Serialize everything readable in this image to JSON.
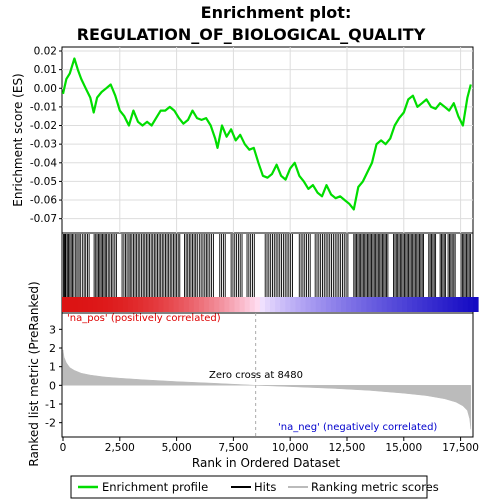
{
  "title_line1": "Enrichment plot:",
  "title_line2": "REGULATION_OF_BIOLOGICAL_QUALITY",
  "colors": {
    "enrichment_line": "#00dd00",
    "hits": "#000000",
    "positive": "#dd0000",
    "negative": "#0000cc",
    "metric_fill": "#bbbbbb",
    "zero_line": "#aaaaaa"
  },
  "chart_data": [
    {
      "type": "line",
      "panel": "enrichment",
      "ylabel": "Enrichment score (ES)",
      "xlim": [
        0,
        18000
      ],
      "ylim": [
        -0.075,
        0.02
      ],
      "yticks": [
        0.02,
        0.01,
        0.0,
        -0.01,
        -0.02,
        -0.03,
        -0.04,
        -0.05,
        -0.06,
        -0.07
      ],
      "ytick_labels": [
        "0.02",
        "0.01",
        "0.00",
        "-0.01",
        "-0.02",
        "-0.03",
        "-0.04",
        "-0.05",
        "-0.06",
        "-0.07"
      ],
      "grid": true,
      "series": [
        {
          "x": [
            0,
            150,
            300,
            500,
            650,
            800,
            1000,
            1200,
            1350,
            1500,
            1700,
            1900,
            2100,
            2300,
            2500,
            2700,
            2900,
            3100,
            3300,
            3500,
            3700,
            3900,
            4100,
            4300,
            4500,
            4700,
            4900,
            5100,
            5300,
            5500,
            5700,
            5900,
            6100,
            6300,
            6500,
            6700,
            6800,
            7000,
            7200,
            7400,
            7600,
            7800,
            8000,
            8200,
            8400,
            8600,
            8800,
            9000,
            9200,
            9400,
            9600,
            9800,
            10000,
            10200,
            10400,
            10600,
            10800,
            11000,
            11200,
            11400,
            11600,
            11800,
            12000,
            12200,
            12400,
            12600,
            12800,
            13000,
            13200,
            13400,
            13600,
            13800,
            14000,
            14200,
            14400,
            14600,
            14800,
            15000,
            15200,
            15400,
            15600,
            15800,
            16000,
            16200,
            16400,
            16600,
            16800,
            17000,
            17200,
            17400,
            17600,
            17800,
            17950
          ],
          "y": [
            -0.003,
            0.005,
            0.008,
            0.016,
            0.01,
            0.005,
            0.0,
            -0.005,
            -0.013,
            -0.005,
            -0.002,
            0.0,
            0.002,
            -0.004,
            -0.012,
            -0.015,
            -0.02,
            -0.012,
            -0.018,
            -0.02,
            -0.018,
            -0.02,
            -0.016,
            -0.012,
            -0.012,
            -0.01,
            -0.012,
            -0.016,
            -0.019,
            -0.017,
            -0.012,
            -0.016,
            -0.017,
            -0.016,
            -0.02,
            -0.027,
            -0.032,
            -0.02,
            -0.026,
            -0.022,
            -0.028,
            -0.025,
            -0.03,
            -0.033,
            -0.032,
            -0.04,
            -0.047,
            -0.048,
            -0.046,
            -0.041,
            -0.047,
            -0.049,
            -0.043,
            -0.04,
            -0.047,
            -0.05,
            -0.054,
            -0.052,
            -0.056,
            -0.058,
            -0.052,
            -0.057,
            -0.059,
            -0.058,
            -0.06,
            -0.062,
            -0.065,
            -0.053,
            -0.05,
            -0.045,
            -0.04,
            -0.03,
            -0.028,
            -0.03,
            -0.027,
            -0.02,
            -0.016,
            -0.013,
            -0.006,
            -0.004,
            -0.01,
            -0.008,
            -0.006,
            -0.01,
            -0.011,
            -0.008,
            -0.01,
            -0.012,
            -0.008,
            -0.015,
            -0.02,
            -0.005,
            0.002
          ]
        }
      ]
    },
    {
      "type": "heatmap",
      "panel": "hits",
      "hit_ranks": [
        25,
        60,
        95,
        130,
        190,
        240,
        300,
        360,
        420,
        480,
        560,
        620,
        700,
        760,
        850,
        930,
        1000,
        1080,
        1150,
        1370,
        1440,
        1500,
        1560,
        1620,
        1680,
        1740,
        1800,
        1860,
        1920,
        1990,
        2060,
        2130,
        2200,
        2280,
        2350,
        2600,
        2680,
        2750,
        2820,
        2900,
        2960,
        3030,
        3100,
        3170,
        3240,
        3310,
        3380,
        3460,
        3530,
        3600,
        3670,
        3740,
        3810,
        3880,
        3950,
        4020,
        4090,
        4160,
        4230,
        4300,
        4370,
        4440,
        4510,
        4580,
        4650,
        4720,
        4790,
        4860,
        4930,
        5000,
        5070,
        5140,
        5350,
        5420,
        5490,
        5560,
        5630,
        5700,
        5770,
        5840,
        5910,
        6000,
        6080,
        6160,
        6240,
        6310,
        6380,
        6460,
        6540,
        6620,
        6900,
        6980,
        7060,
        7140,
        7400,
        7480,
        7560,
        7640,
        7720,
        7800,
        7880,
        8100,
        8180,
        8260,
        8340,
        8420,
        8900,
        8980,
        9060,
        9140,
        9220,
        9300,
        9380,
        9460,
        9540,
        9620,
        9700,
        9780,
        9860,
        9940,
        10020,
        10100,
        10400,
        10480,
        10560,
        10640,
        10720,
        10800,
        10880,
        11100,
        11180,
        11260,
        11340,
        11420,
        11500,
        11580,
        11660,
        11740,
        11820,
        11900,
        11980,
        12060,
        12140,
        12220,
        12300,
        12380,
        12460,
        12540,
        12800,
        12860,
        12920,
        12980,
        13040,
        13100,
        13160,
        13220,
        13280,
        13340,
        13400,
        13460,
        13520,
        13580,
        13640,
        13700,
        13760,
        13820,
        13880,
        13940,
        14000,
        14060,
        14120,
        14180,
        14240,
        14300,
        14550,
        14610,
        14670,
        14730,
        14790,
        14850,
        14910,
        14970,
        15030,
        15090,
        15150,
        15210,
        15270,
        15330,
        15390,
        15450,
        15510,
        15570,
        15630,
        15690,
        15750,
        15810,
        15870,
        16100,
        16160,
        16220,
        16280,
        16340,
        16400,
        16600,
        16660,
        16720,
        16780,
        16840,
        16950,
        17010,
        17070,
        17130,
        17200,
        17260,
        17520,
        17580,
        17640,
        17700,
        17760,
        17820,
        17880,
        17940
      ]
    },
    {
      "type": "area",
      "panel": "ranked_metric",
      "xlabel": "Rank in Ordered Dataset",
      "ylabel": "Ranked list metric (PreRanked)",
      "xlim": [
        0,
        18000
      ],
      "ylim": [
        -2.5,
        3.5
      ],
      "xticks": [
        0,
        2500,
        5000,
        7500,
        10000,
        12500,
        15000,
        17500
      ],
      "xtick_labels": [
        "0",
        "2,500",
        "5,000",
        "7,500",
        "10,000",
        "12,500",
        "15,000",
        "17,500"
      ],
      "yticks": [
        3,
        2,
        1,
        0,
        -1,
        -2
      ],
      "ytick_labels": [
        "3",
        "2",
        "1",
        "0",
        "-1",
        "-2"
      ],
      "zero_cross_rank": 8480,
      "annotations": [
        "'na_pos' (positively correlated)",
        "Zero cross at 8480",
        "'na_neg' (negatively correlated)"
      ],
      "series": [
        {
          "x": [
            0,
            50,
            150,
            300,
            500,
            800,
            1200,
            1800,
            2500,
            3500,
            5000,
            6500,
            8480,
            10000,
            12000,
            13500,
            15000,
            16000,
            16800,
            17300,
            17600,
            17800,
            17900,
            17950
          ],
          "y": [
            1.9,
            1.5,
            1.2,
            0.95,
            0.8,
            0.65,
            0.55,
            0.45,
            0.38,
            0.3,
            0.2,
            0.12,
            0.0,
            -0.07,
            -0.17,
            -0.27,
            -0.42,
            -0.55,
            -0.72,
            -0.9,
            -1.1,
            -1.35,
            -1.8,
            -2.35
          ]
        }
      ]
    }
  ],
  "legend": {
    "items": [
      {
        "label": "Enrichment profile",
        "color": "#00dd00"
      },
      {
        "label": "Hits",
        "color": "#000000"
      },
      {
        "label": "Ranking metric scores",
        "color": "#bbbbbb"
      }
    ]
  }
}
